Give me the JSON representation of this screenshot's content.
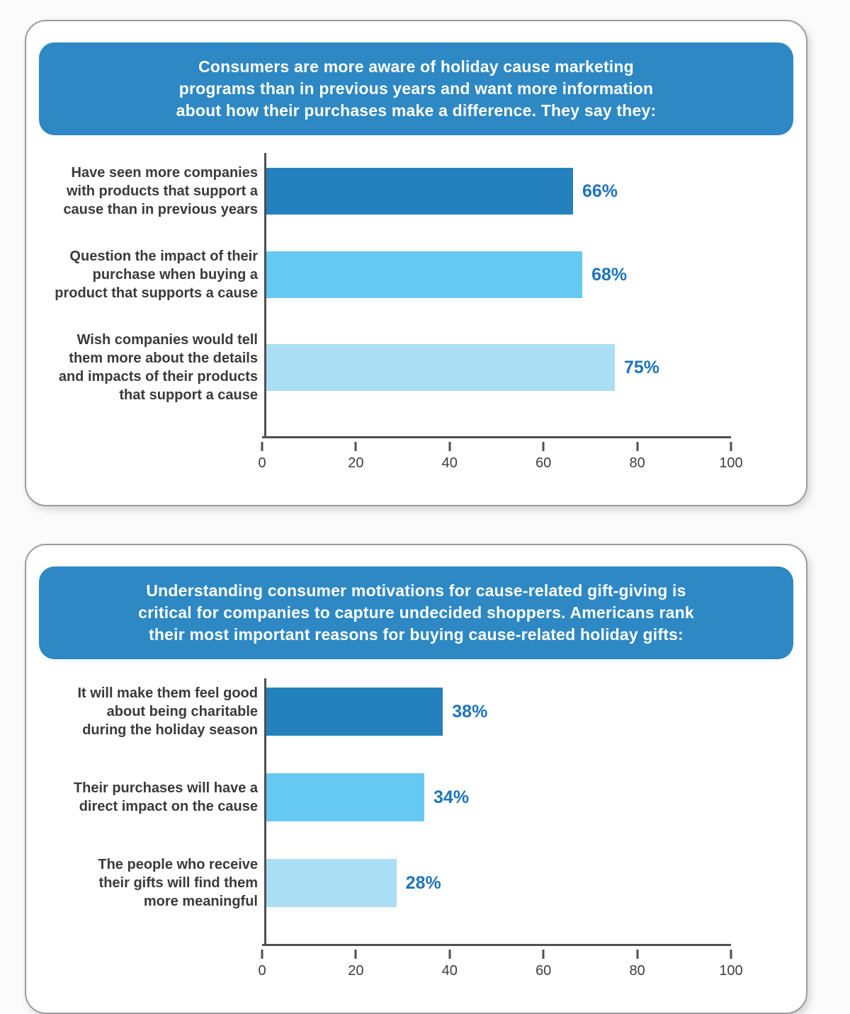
{
  "page_background": "#fbfbfb",
  "panel": {
    "background": "#ffffff",
    "border_color": "#9c9c9c"
  },
  "colors": {
    "banner": "#2d88c3",
    "banner_text": "#ffffff",
    "value_label": "#1e74b8",
    "axis": "#4f4f4f",
    "tick_text": "#3d3d3d",
    "category_text": "#3a3a3a"
  },
  "chart_data": [
    {
      "type": "bar",
      "orientation": "horizontal",
      "title": "Consumers are more aware of holiday cause marketing programs than in previous years and want more information about how their purchases make a difference. They say they:",
      "title_lines": [
        "Consumers are more aware of holiday cause marketing",
        "programs than in previous years and want more information",
        "about how their purchases make a difference. They say they:"
      ],
      "categories": [
        "Have seen more companies with products that support a cause than in previous years",
        "Question the impact of their purchase when buying a product that supports a cause",
        "Wish companies would tell them more about the details and impacts of their products that support a cause"
      ],
      "category_lines": [
        [
          "Have seen more companies",
          "with products that support a",
          "cause than in previous years"
        ],
        [
          "Question the impact of their",
          "purchase when buying a",
          "product that supports a cause"
        ],
        [
          "Wish companies would tell",
          "them more about the details",
          "and impacts of their products",
          "that support a cause"
        ]
      ],
      "values": [
        66,
        68,
        75
      ],
      "value_labels": [
        "66%",
        "68%",
        "75%"
      ],
      "bar_colors": [
        "#2581bd",
        "#66c9f2",
        "#aadef4"
      ],
      "xlim": [
        0,
        100
      ],
      "xticks": [
        "0",
        "20",
        "40",
        "60",
        "80",
        "100"
      ],
      "grid": false,
      "legend": false
    },
    {
      "type": "bar",
      "orientation": "horizontal",
      "title": "Understanding consumer motivations for cause-related gift-giving is critical for companies to capture undecided shoppers. Americans rank their most important reasons for buying cause-related holiday gifts:",
      "title_lines": [
        "Understanding consumer motivations for cause-related gift-giving is",
        "critical for companies to capture undecided shoppers. Americans rank",
        "their most important reasons for buying cause-related holiday gifts:"
      ],
      "categories": [
        "It will make them feel good about being charitable during the holiday season",
        "Their purchases will have a direct impact on the cause",
        "The people who receive their gifts will find them more meaningful"
      ],
      "category_lines": [
        [
          "It will make them feel good",
          "about being charitable",
          "during the holiday season"
        ],
        [
          "Their purchases will have a",
          "direct impact on the cause"
        ],
        [
          "The people who receive",
          "their gifts will find them",
          "more meaningful"
        ]
      ],
      "values": [
        38,
        34,
        28
      ],
      "value_labels": [
        "38%",
        "34%",
        "28%"
      ],
      "bar_colors": [
        "#2581bd",
        "#66c9f2",
        "#aadef4"
      ],
      "xlim": [
        0,
        100
      ],
      "xticks": [
        "0",
        "20",
        "40",
        "60",
        "80",
        "100"
      ],
      "grid": false,
      "legend": false
    }
  ]
}
